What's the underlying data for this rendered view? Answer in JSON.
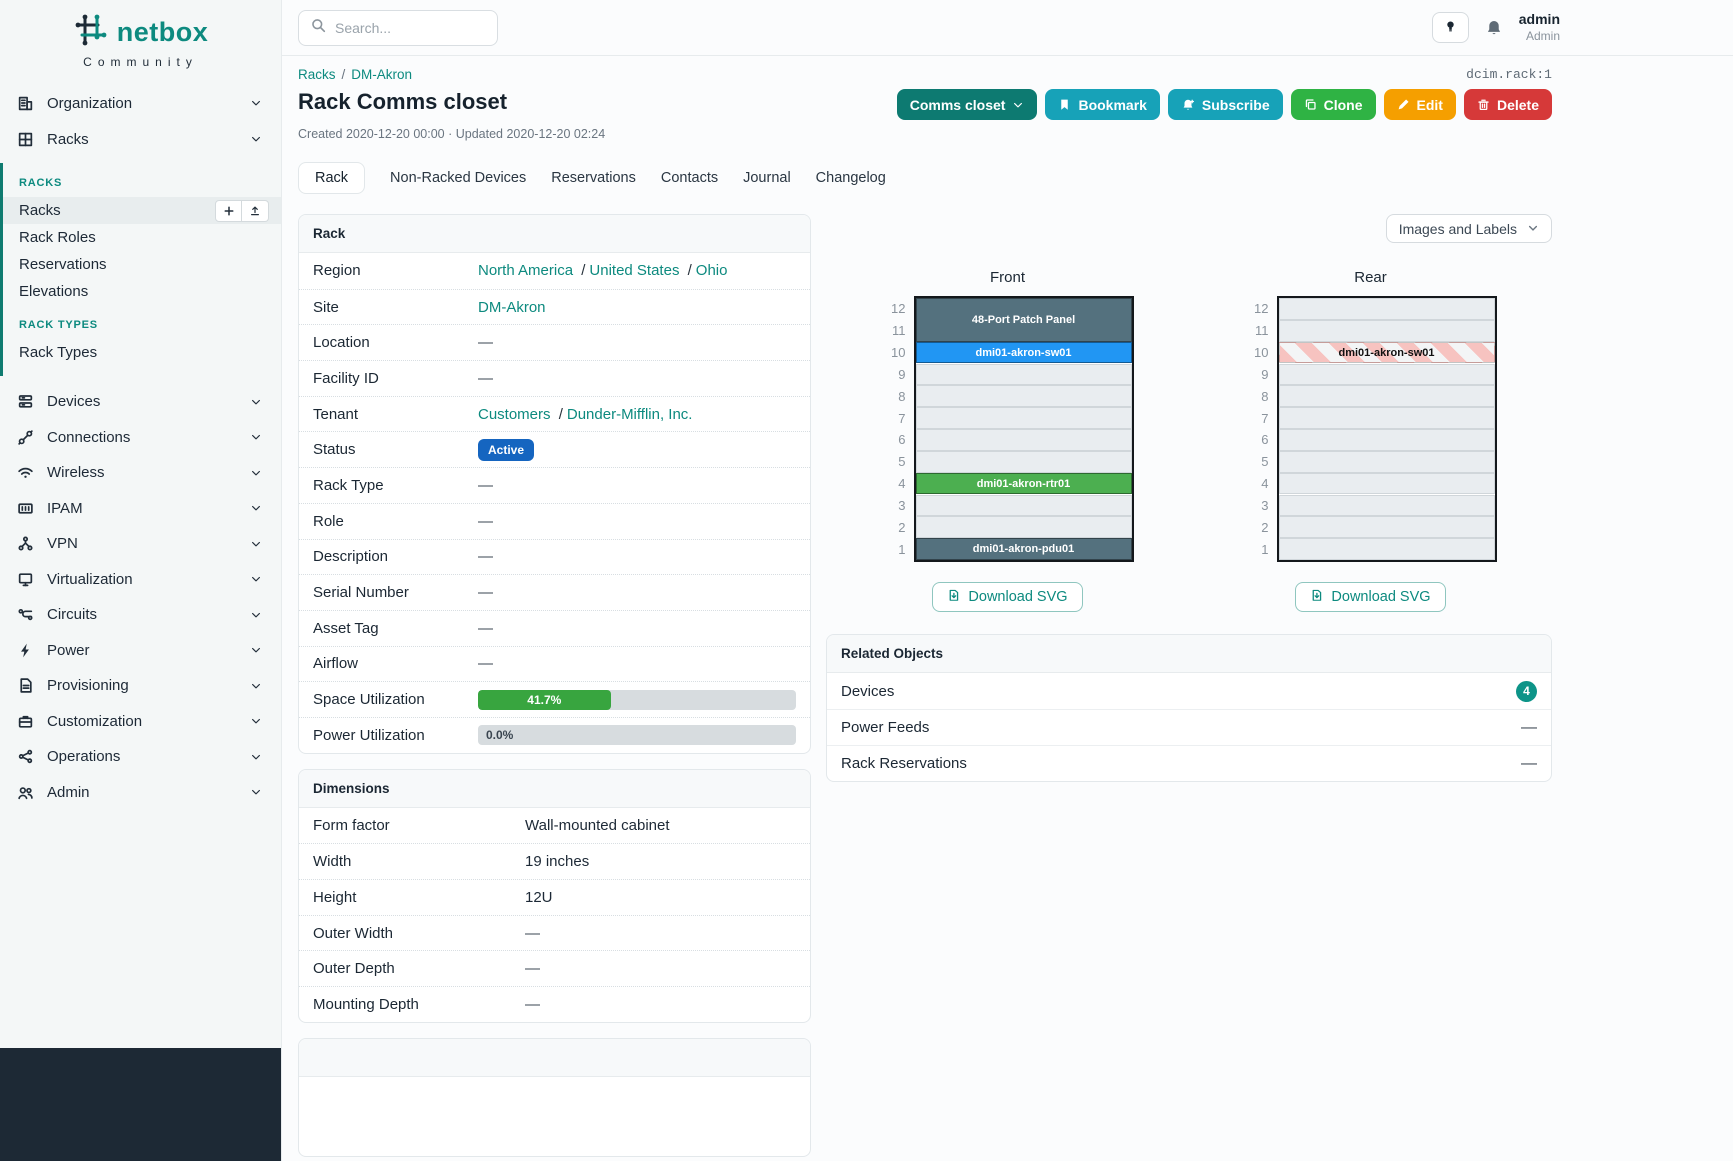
{
  "brand": {
    "name": "netbox",
    "subtitle": "Community"
  },
  "topbar": {
    "search_placeholder": "Search...",
    "user": {
      "username": "admin",
      "role": "Admin"
    }
  },
  "sidebar": {
    "top_items": [
      {
        "label": "Organization",
        "icon": "organization"
      },
      {
        "label": "Racks",
        "icon": "racks"
      }
    ],
    "submenu": {
      "groups": [
        {
          "heading": "RACKS",
          "items": [
            {
              "label": "Racks",
              "active": true
            },
            {
              "label": "Rack Roles"
            },
            {
              "label": "Reservations"
            },
            {
              "label": "Elevations"
            }
          ]
        },
        {
          "heading": "RACK TYPES",
          "items": [
            {
              "label": "Rack Types"
            }
          ]
        }
      ]
    },
    "items": [
      {
        "label": "Devices",
        "icon": "devices"
      },
      {
        "label": "Connections",
        "icon": "connections"
      },
      {
        "label": "Wireless",
        "icon": "wireless"
      },
      {
        "label": "IPAM",
        "icon": "ipam"
      },
      {
        "label": "VPN",
        "icon": "vpn"
      },
      {
        "label": "Virtualization",
        "icon": "virtualization"
      },
      {
        "label": "Circuits",
        "icon": "circuits"
      },
      {
        "label": "Power",
        "icon": "power"
      },
      {
        "label": "Provisioning",
        "icon": "provisioning"
      },
      {
        "label": "Customization",
        "icon": "customization"
      },
      {
        "label": "Operations",
        "icon": "operations"
      },
      {
        "label": "Admin",
        "icon": "admin"
      }
    ]
  },
  "page": {
    "breadcrumb": [
      "Racks",
      "DM-Akron"
    ],
    "object_id": "dcim.rack:1",
    "title": "Rack Comms closet",
    "meta": "Created 2020-12-20 00:00 · Updated 2020-12-20 02:24",
    "actions": [
      {
        "label": "Comms closet",
        "style": "dark-teal",
        "icon_right": "chevron-down",
        "name": "rack-group-button"
      },
      {
        "label": "Bookmark",
        "style": "cyan",
        "icon": "bookmark",
        "name": "bookmark-button"
      },
      {
        "label": "Subscribe",
        "style": "cyan",
        "icon": "bell-plus",
        "name": "subscribe-button"
      },
      {
        "label": "Clone",
        "style": "green",
        "icon": "copy",
        "name": "clone-button"
      },
      {
        "label": "Edit",
        "style": "orange",
        "icon": "pencil",
        "name": "edit-button"
      },
      {
        "label": "Delete",
        "style": "red",
        "icon": "trash",
        "name": "delete-button"
      }
    ],
    "tabs": [
      {
        "label": "Rack",
        "active": true
      },
      {
        "label": "Non-Racked Devices"
      },
      {
        "label": "Reservations"
      },
      {
        "label": "Contacts"
      },
      {
        "label": "Journal"
      },
      {
        "label": "Changelog"
      }
    ]
  },
  "rack_panel": {
    "title": "Rack",
    "rows": [
      {
        "label": "Region",
        "type": "links",
        "parts": [
          "North America",
          "United States",
          "Ohio"
        ]
      },
      {
        "label": "Site",
        "type": "links",
        "parts": [
          "DM-Akron"
        ]
      },
      {
        "label": "Location",
        "type": "text",
        "value": "—"
      },
      {
        "label": "Facility ID",
        "type": "text",
        "value": "—"
      },
      {
        "label": "Tenant",
        "type": "links",
        "parts": [
          "Customers",
          "Dunder-Mifflin, Inc."
        ]
      },
      {
        "label": "Status",
        "type": "badge",
        "value": "Active",
        "color": "#1565c0"
      },
      {
        "label": "Rack Type",
        "type": "text",
        "value": "—"
      },
      {
        "label": "Role",
        "type": "text",
        "value": "—"
      },
      {
        "label": "Description",
        "type": "text",
        "value": "—"
      },
      {
        "label": "Serial Number",
        "type": "text",
        "value": "—"
      },
      {
        "label": "Asset Tag",
        "type": "text",
        "value": "—"
      },
      {
        "label": "Airflow",
        "type": "text",
        "value": "—"
      },
      {
        "label": "Space Utilization",
        "type": "progress",
        "value": "41.7%",
        "percent": 41.7,
        "color": "#38a53f"
      },
      {
        "label": "Power Utilization",
        "type": "progress",
        "value": "0.0%",
        "percent": 0,
        "color": "#38a53f"
      }
    ]
  },
  "dimensions_panel": {
    "title": "Dimensions",
    "rows": [
      {
        "label": "Form factor",
        "value": "Wall-mounted cabinet"
      },
      {
        "label": "Width",
        "value": "19 inches"
      },
      {
        "label": "Height",
        "value": "12U"
      },
      {
        "label": "Outer Width",
        "value": "—"
      },
      {
        "label": "Outer Depth",
        "value": "—"
      },
      {
        "label": "Mounting Depth",
        "value": "—"
      }
    ]
  },
  "elevations": {
    "toggle_label": "Images and Labels",
    "download_label": "Download SVG",
    "u_height": 12,
    "views": [
      {
        "title": "Front",
        "devices": [
          {
            "name": "48-Port Patch Panel",
            "top_unit": 12,
            "u_height": 2,
            "bg": "#54717e",
            "fg": "#ffffff"
          },
          {
            "name": "dmi01-akron-sw01",
            "top_unit": 10,
            "u_height": 1,
            "bg": "#2196f3",
            "fg": "#ffffff"
          },
          {
            "name": "dmi01-akron-rtr01",
            "top_unit": 4,
            "u_height": 1,
            "bg": "#4caf50",
            "fg": "#ffffff"
          },
          {
            "name": "dmi01-akron-pdu01",
            "top_unit": 1,
            "u_height": 1,
            "bg": "#54717e",
            "fg": "#ffffff"
          }
        ]
      },
      {
        "title": "Rear",
        "devices": [
          {
            "name": "dmi01-akron-sw01",
            "top_unit": 10,
            "u_height": 1,
            "striped": true,
            "fg": "#111111"
          }
        ]
      }
    ]
  },
  "related_objects": {
    "title": "Related Objects",
    "rows": [
      {
        "label": "Devices",
        "count": "4"
      },
      {
        "label": "Power Feeds",
        "value": "—"
      },
      {
        "label": "Rack Reservations",
        "value": "—"
      }
    ]
  },
  "colors": {
    "accent": "#0d8a7f",
    "status_active": "#1565c0",
    "utilization_green": "#38a53f",
    "count_badge": "#0d9488"
  }
}
